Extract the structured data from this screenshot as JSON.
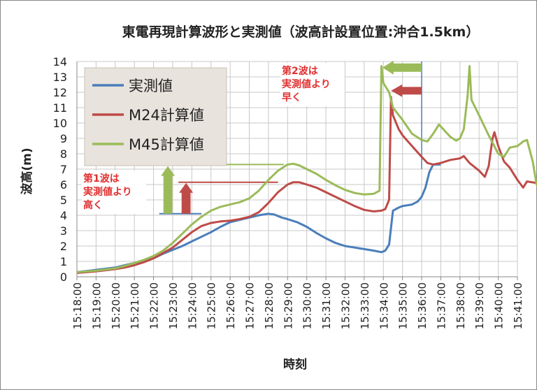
{
  "chart_data": {
    "type": "line",
    "title": "東電再現計算波形と実測値（波高計設置位置:沖合1.5km）",
    "xlabel": "時刻",
    "ylabel": "波高(m)",
    "ylim": [
      0,
      14
    ],
    "yticks": [
      "0",
      "1",
      "2",
      "3",
      "4",
      "5",
      "6",
      "7",
      "8",
      "9",
      "10",
      "11",
      "12",
      "13",
      "14"
    ],
    "xticks": [
      "15:18:00",
      "15:19:00",
      "15:20:00",
      "15:21:00",
      "15:22:00",
      "15:23:00",
      "15:24:00",
      "15:25:00",
      "15:26:00",
      "15:27:00",
      "15:28:00",
      "15:29:00",
      "15:30:00",
      "15:31:00",
      "15:32:00",
      "15:33:00",
      "15:34:00",
      "15:35:00",
      "15:36:00",
      "15:37:00",
      "15:38:00",
      "15:39:00",
      "15:40:00",
      "15:41:00"
    ],
    "grid": true,
    "legend_position": "top-left",
    "series": [
      {
        "name": "実測値",
        "color": "#4a7ebb",
        "points": [
          [
            0,
            0.3
          ],
          [
            1,
            0.45
          ],
          [
            2,
            0.6
          ],
          [
            2.5,
            0.75
          ],
          [
            3,
            0.9
          ],
          [
            3.5,
            1.05
          ],
          [
            4,
            1.2
          ],
          [
            4.5,
            1.5
          ],
          [
            5,
            1.75
          ],
          [
            5.5,
            2.0
          ],
          [
            6,
            2.3
          ],
          [
            6.5,
            2.6
          ],
          [
            7,
            2.9
          ],
          [
            7.5,
            3.25
          ],
          [
            8,
            3.55
          ],
          [
            8.5,
            3.7
          ],
          [
            9,
            3.85
          ],
          [
            9.5,
            4.0
          ],
          [
            10,
            4.1
          ],
          [
            10.3,
            4.05
          ],
          [
            10.7,
            3.85
          ],
          [
            11,
            3.75
          ],
          [
            11.5,
            3.55
          ],
          [
            12,
            3.25
          ],
          [
            12.5,
            2.85
          ],
          [
            13,
            2.5
          ],
          [
            13.5,
            2.2
          ],
          [
            14,
            2.0
          ],
          [
            14.5,
            1.9
          ],
          [
            15,
            1.8
          ],
          [
            15.5,
            1.7
          ],
          [
            15.9,
            1.6
          ],
          [
            16.1,
            1.7
          ],
          [
            16.3,
            2.1
          ],
          [
            16.5,
            4.3
          ],
          [
            16.8,
            4.5
          ],
          [
            17,
            4.6
          ],
          [
            17.5,
            4.7
          ],
          [
            17.8,
            4.9
          ],
          [
            18,
            5.2
          ],
          [
            18.2,
            5.8
          ],
          [
            18.4,
            6.8
          ],
          [
            18.6,
            7.3
          ],
          [
            19,
            7.3
          ]
        ]
      },
      {
        "name": "M24計算値",
        "color": "#be4b48",
        "points": [
          [
            0,
            0.25
          ],
          [
            1,
            0.35
          ],
          [
            2,
            0.5
          ],
          [
            2.5,
            0.6
          ],
          [
            3,
            0.75
          ],
          [
            3.5,
            0.95
          ],
          [
            4,
            1.2
          ],
          [
            4.5,
            1.55
          ],
          [
            5,
            1.9
          ],
          [
            5.5,
            2.4
          ],
          [
            6,
            2.9
          ],
          [
            6.5,
            3.3
          ],
          [
            7,
            3.5
          ],
          [
            7.5,
            3.6
          ],
          [
            8,
            3.65
          ],
          [
            8.5,
            3.75
          ],
          [
            9,
            3.9
          ],
          [
            9.5,
            4.2
          ],
          [
            10,
            4.8
          ],
          [
            10.5,
            5.5
          ],
          [
            11,
            6.0
          ],
          [
            11.3,
            6.15
          ],
          [
            11.6,
            6.15
          ],
          [
            12,
            6.0
          ],
          [
            12.5,
            5.8
          ],
          [
            13,
            5.5
          ],
          [
            13.5,
            5.2
          ],
          [
            14,
            4.9
          ],
          [
            14.5,
            4.6
          ],
          [
            15,
            4.35
          ],
          [
            15.5,
            4.25
          ],
          [
            15.9,
            4.3
          ],
          [
            16.1,
            4.4
          ],
          [
            16.3,
            5.0
          ],
          [
            16.4,
            11.7
          ],
          [
            16.5,
            10.5
          ],
          [
            16.8,
            9.6
          ],
          [
            17,
            9.2
          ],
          [
            17.5,
            8.5
          ],
          [
            18,
            7.8
          ],
          [
            18.3,
            7.4
          ],
          [
            18.6,
            7.3
          ],
          [
            19,
            7.4
          ],
          [
            19.5,
            7.6
          ],
          [
            20,
            7.7
          ],
          [
            20.2,
            7.85
          ],
          [
            20.5,
            7.4
          ],
          [
            21,
            6.9
          ],
          [
            21.3,
            6.5
          ],
          [
            21.5,
            7.2
          ],
          [
            21.7,
            9.0
          ],
          [
            21.8,
            9.4
          ],
          [
            22,
            8.5
          ],
          [
            22.3,
            7.5
          ],
          [
            22.6,
            7.1
          ],
          [
            23,
            6.3
          ],
          [
            23.3,
            5.8
          ],
          [
            23.5,
            6.2
          ],
          [
            24,
            6.1
          ],
          [
            24.5,
            5.9
          ],
          [
            25,
            5.8
          ],
          [
            25.5,
            5.4
          ],
          [
            26,
            4.9
          ],
          [
            26.5,
            4.2
          ],
          [
            27,
            3.8
          ]
        ]
      },
      {
        "name": "M45計算値",
        "color": "#9bbb59",
        "points": [
          [
            0,
            0.3
          ],
          [
            1,
            0.4
          ],
          [
            2,
            0.55
          ],
          [
            2.5,
            0.7
          ],
          [
            3,
            0.9
          ],
          [
            3.5,
            1.1
          ],
          [
            4,
            1.35
          ],
          [
            4.5,
            1.7
          ],
          [
            5,
            2.2
          ],
          [
            5.5,
            2.8
          ],
          [
            6,
            3.4
          ],
          [
            6.5,
            3.9
          ],
          [
            7,
            4.3
          ],
          [
            7.5,
            4.55
          ],
          [
            8,
            4.7
          ],
          [
            8.5,
            4.85
          ],
          [
            9,
            5.1
          ],
          [
            9.5,
            5.6
          ],
          [
            10,
            6.3
          ],
          [
            10.5,
            6.9
          ],
          [
            11,
            7.3
          ],
          [
            11.3,
            7.35
          ],
          [
            11.6,
            7.25
          ],
          [
            12,
            7.0
          ],
          [
            12.5,
            6.7
          ],
          [
            13,
            6.3
          ],
          [
            13.5,
            5.95
          ],
          [
            14,
            5.65
          ],
          [
            14.5,
            5.45
          ],
          [
            15,
            5.35
          ],
          [
            15.5,
            5.4
          ],
          [
            15.8,
            5.6
          ],
          [
            15.9,
            13.7
          ],
          [
            16,
            12.6
          ],
          [
            16.3,
            12.0
          ],
          [
            16.5,
            11.0
          ],
          [
            17,
            10.2
          ],
          [
            17.5,
            9.3
          ],
          [
            18,
            8.9
          ],
          [
            18.3,
            8.8
          ],
          [
            18.6,
            9.3
          ],
          [
            18.9,
            9.9
          ],
          [
            19.2,
            9.5
          ],
          [
            19.5,
            9.1
          ],
          [
            19.8,
            8.85
          ],
          [
            20,
            9.0
          ],
          [
            20.2,
            9.6
          ],
          [
            20.4,
            11.8
          ],
          [
            20.5,
            13.7
          ],
          [
            20.6,
            11.5
          ],
          [
            21,
            10.5
          ],
          [
            21.5,
            9.2
          ],
          [
            22,
            8.0
          ],
          [
            22.3,
            7.8
          ],
          [
            22.6,
            8.4
          ],
          [
            23,
            8.5
          ],
          [
            23.3,
            8.8
          ],
          [
            23.5,
            8.9
          ],
          [
            23.8,
            7.5
          ],
          [
            24,
            6.0
          ],
          [
            24.5,
            5.0
          ],
          [
            25,
            4.9
          ],
          [
            25.5,
            4.7
          ],
          [
            26,
            4.4
          ],
          [
            26.5,
            3.8
          ],
          [
            27,
            3.3
          ]
        ]
      }
    ],
    "annotations": [
      {
        "text_lines": [
          "第1波は",
          "実測値より",
          "高く"
        ],
        "color": "#e03030"
      },
      {
        "text_lines": [
          "第2波は",
          "実測値より",
          "早く"
        ],
        "color": "#e03030"
      }
    ]
  }
}
